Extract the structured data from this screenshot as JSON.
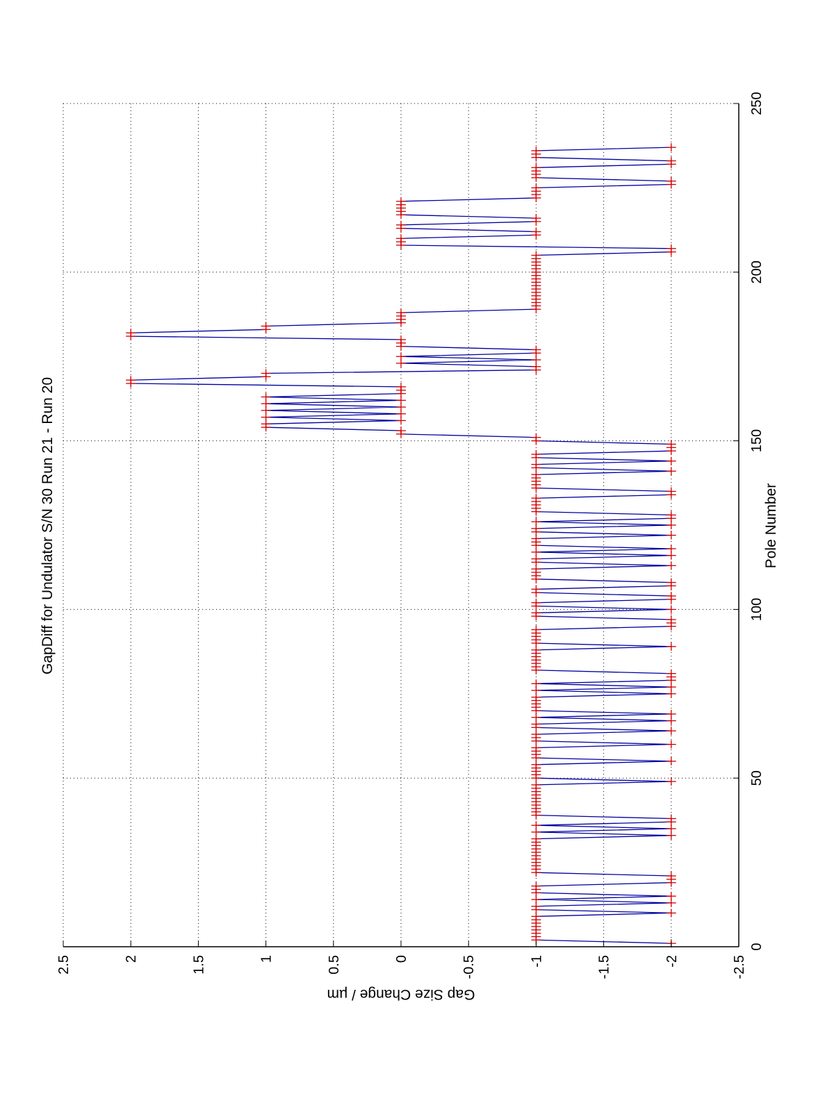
{
  "chart_data": {
    "type": "line",
    "orientation": "rotated-90-clockwise",
    "title": "GapDiff  for Undulator S/N 30 Run 21 - Run 20",
    "xlabel": "Pole Number",
    "ylabel": "Gap Size Change / µm",
    "xlim": [
      0,
      250
    ],
    "ylim": [
      -2.5,
      2.5
    ],
    "xticks": [
      0,
      50,
      100,
      150,
      200,
      250
    ],
    "yticks": [
      -2.5,
      -2,
      -1.5,
      -1,
      -0.5,
      0,
      0.5,
      1,
      1.5,
      2,
      2.5
    ],
    "xtick_labels": [
      "0",
      "50",
      "100",
      "150",
      "200",
      "250"
    ],
    "ytick_labels": [
      "-2.5",
      "-2",
      "-1.5",
      "-1",
      "-0.5",
      "0",
      "0.5",
      "1",
      "1.5",
      "2",
      "2.5"
    ],
    "grid": true,
    "series": [
      {
        "name": "GapDiff",
        "line_color": "#0000a0",
        "marker": "+",
        "marker_color": "#d00000",
        "x_start": 1,
        "values": [
          -2,
          -1,
          -1,
          -1,
          -1,
          -1,
          -1,
          -1,
          -1,
          -2,
          -1,
          -1,
          -2,
          -1,
          -2,
          -1,
          -1,
          -1,
          -2,
          -2,
          -2,
          -1,
          -1,
          -1,
          -1,
          -1,
          -1,
          -1,
          -1,
          -1,
          -1,
          -1,
          -2,
          -1,
          -2,
          -1,
          -2,
          -2,
          -1,
          -1,
          -1,
          -1,
          -1,
          -1,
          -1,
          -1,
          -1,
          -1,
          -2,
          -1,
          -1,
          -1,
          -1,
          -1,
          -2,
          -1,
          -1,
          -1,
          -1,
          -2,
          -1,
          -1,
          -1,
          -2,
          -1,
          -1,
          -2,
          -1,
          -2,
          -1,
          -1,
          -1,
          -1,
          -1,
          -2,
          -1,
          -2,
          -1,
          -2,
          -2,
          -2,
          -1,
          -1,
          -1,
          -1,
          -1,
          -1,
          -1,
          -2,
          -1,
          -1,
          -1,
          -1,
          -1,
          -2,
          -2,
          -2,
          -1,
          -1,
          -2,
          -1,
          -1,
          -2,
          -2,
          -1,
          -1,
          -2,
          -2,
          -1,
          -1,
          -1,
          -1,
          -2,
          -1,
          -1,
          -2,
          -1,
          -2,
          -1,
          -1,
          -1,
          -2,
          -1,
          -1,
          -2,
          -1,
          -2,
          -2,
          -1,
          -1,
          -1,
          -1,
          -1,
          -2,
          -2,
          -1,
          -1,
          -1,
          -1,
          -1,
          -2,
          -1,
          -1,
          -2,
          -1,
          -1,
          -2,
          -2,
          -2,
          -1,
          -1,
          0,
          0,
          1,
          1,
          0,
          1,
          0,
          1,
          0,
          1,
          0,
          1,
          0,
          0,
          0,
          2,
          2,
          1,
          1,
          -1,
          -1,
          0,
          -1,
          0,
          -1,
          -1,
          0,
          0,
          0,
          2,
          2,
          1,
          1,
          0,
          0,
          0,
          0,
          -1,
          -1,
          -1,
          -1,
          -1,
          -1,
          -1,
          -1,
          -1,
          -1,
          -1,
          -1,
          -1,
          -1,
          -1,
          -1,
          -1,
          -2,
          -2,
          0,
          0,
          0,
          -1,
          -1,
          0,
          0,
          -1,
          -1,
          0,
          0,
          0,
          0,
          0,
          -1,
          -1,
          -1,
          -1,
          -2,
          -2,
          -1,
          -1,
          -1,
          -1,
          -2,
          -2,
          -1,
          -1,
          -1,
          -2
        ]
      }
    ]
  }
}
